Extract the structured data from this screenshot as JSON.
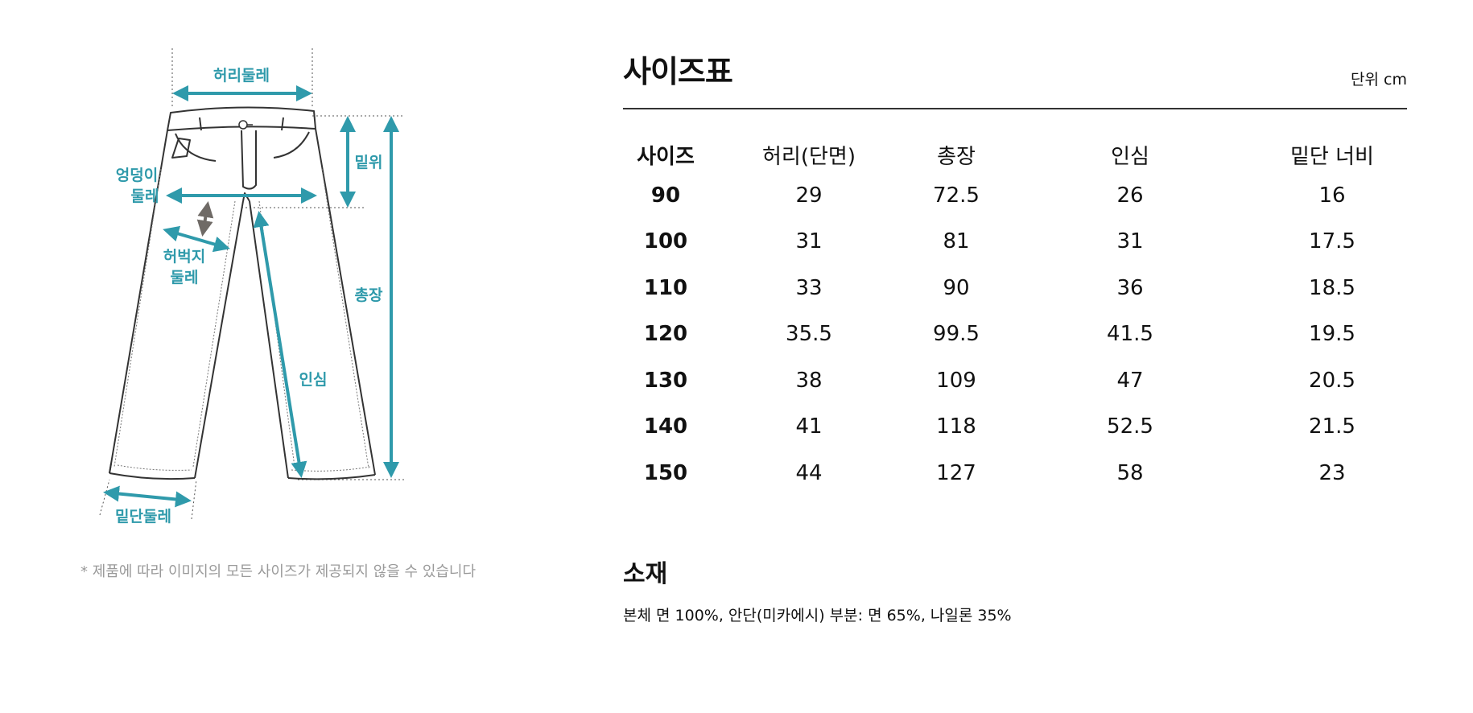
{
  "diagram": {
    "labels": {
      "waist": "허리둘레",
      "rise": "밑위",
      "hip_line1": "엉덩이",
      "hip_line2": "둘레",
      "thigh_line1": "허벅지",
      "thigh_line2": "둘레",
      "length": "총장",
      "inseam": "인심",
      "hem": "밑단둘레"
    },
    "accent_color": "#2f9aab",
    "arrow_gray": "#6f6a66"
  },
  "note": "* 제품에 따라 이미지의 모든 사이즈가 제공되지 않을 수 있습니다",
  "size_chart": {
    "title": "사이즈표",
    "unit": "단위 cm",
    "headers": [
      "사이즈",
      "허리(단면)",
      "총장",
      "인심",
      "밑단 너비"
    ],
    "rows": [
      [
        "90",
        "29",
        "72.5",
        "26",
        "16"
      ],
      [
        "100",
        "31",
        "81",
        "31",
        "17.5"
      ],
      [
        "110",
        "33",
        "90",
        "36",
        "18.5"
      ],
      [
        "120",
        "35.5",
        "99.5",
        "41.5",
        "19.5"
      ],
      [
        "130",
        "38",
        "109",
        "47",
        "20.5"
      ],
      [
        "140",
        "41",
        "118",
        "52.5",
        "21.5"
      ],
      [
        "150",
        "44",
        "127",
        "58",
        "23"
      ]
    ]
  },
  "material": {
    "title": "소재",
    "text": "본체 면 100%, 안단(미카에시) 부분: 면 65%, 나일론 35%"
  }
}
